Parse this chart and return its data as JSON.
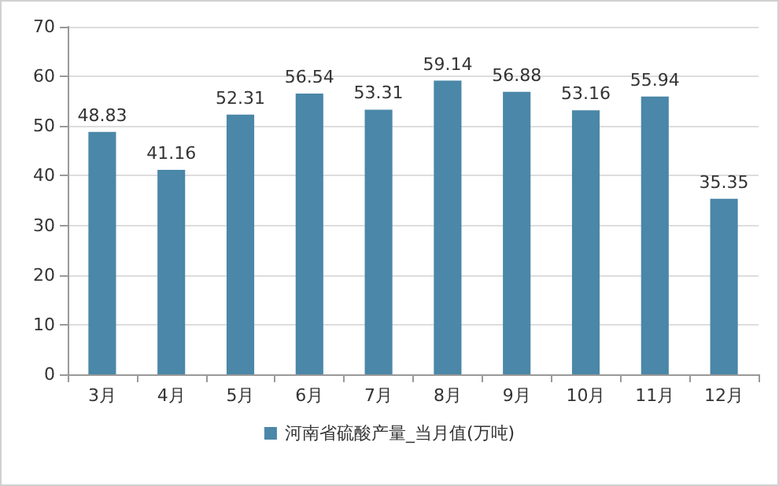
{
  "chart_data": {
    "type": "bar",
    "categories": [
      "3月",
      "4月",
      "5月",
      "6月",
      "7月",
      "8月",
      "9月",
      "10月",
      "11月",
      "12月"
    ],
    "series": [
      {
        "name": "河南省硫酸产量_当月值(万吨)",
        "color": "#4a87a8",
        "values": [
          48.83,
          41.16,
          52.31,
          56.54,
          53.31,
          59.14,
          56.88,
          53.16,
          55.94,
          35.35
        ]
      }
    ],
    "ylim": [
      0,
      70
    ],
    "yticks": [
      0,
      10,
      20,
      30,
      40,
      50,
      60,
      70
    ],
    "grid": "y",
    "legend": "bottom",
    "data_labels": true
  }
}
